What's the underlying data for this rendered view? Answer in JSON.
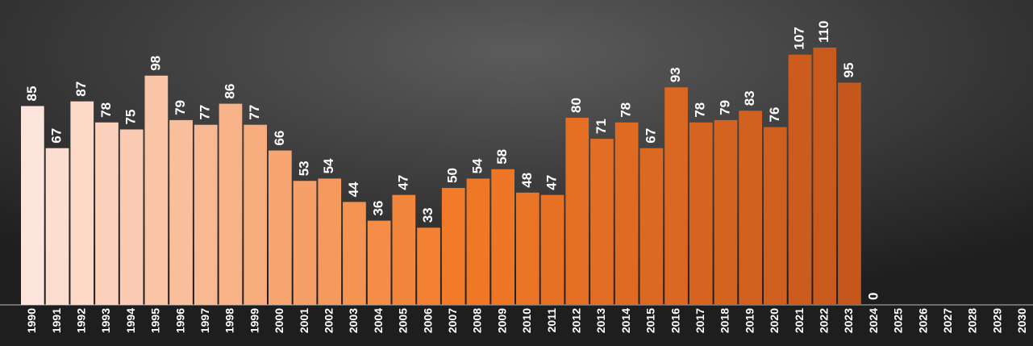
{
  "chart_data": {
    "type": "bar",
    "categories": [
      "1990",
      "1991",
      "1992",
      "1993",
      "1994",
      "1995",
      "1996",
      "1997",
      "1998",
      "1999",
      "2000",
      "2001",
      "2002",
      "2003",
      "2004",
      "2005",
      "2006",
      "2007",
      "2008",
      "2009",
      "2010",
      "2011",
      "2012",
      "2013",
      "2014",
      "2015",
      "2016",
      "2017",
      "2018",
      "2019",
      "2020",
      "2021",
      "2022",
      "2023",
      "2024",
      "2025",
      "2026",
      "2027",
      "2028",
      "2029",
      "2030"
    ],
    "values": [
      85,
      67,
      87,
      78,
      75,
      98,
      79,
      77,
      86,
      77,
      66,
      53,
      54,
      44,
      36,
      47,
      33,
      50,
      54,
      58,
      48,
      47,
      80,
      71,
      78,
      67,
      93,
      78,
      79,
      83,
      76,
      107,
      110,
      95,
      0,
      null,
      null,
      null,
      null,
      null,
      null
    ],
    "colors": [
      "#fde4dc",
      "#f27a28",
      "#c4561c"
    ],
    "ylim": [
      0,
      110
    ]
  }
}
